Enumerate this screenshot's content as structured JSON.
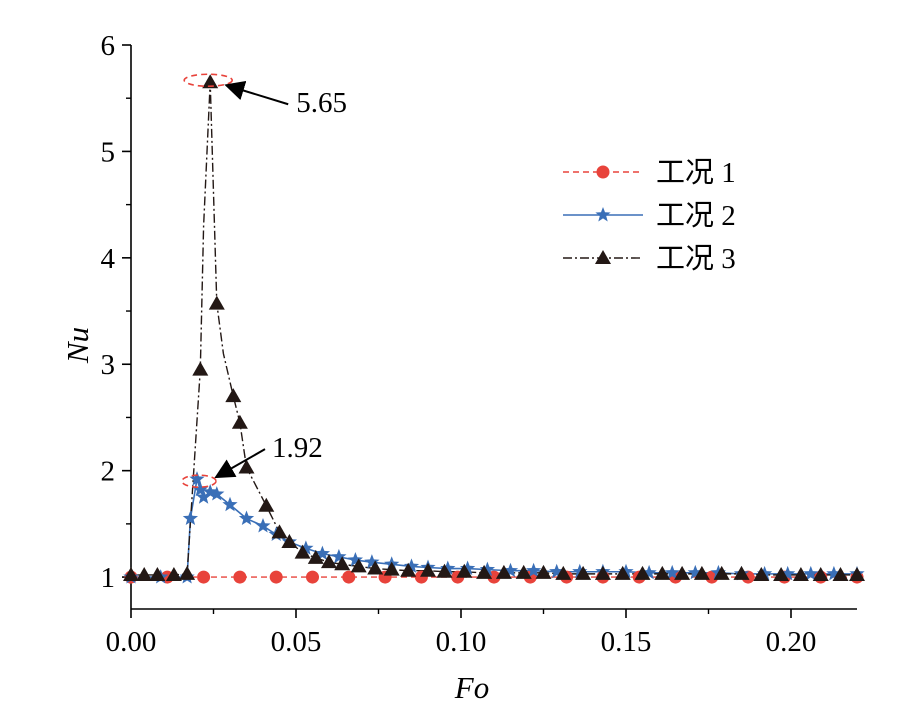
{
  "chart_data": {
    "type": "line",
    "xlabel": "Fo",
    "ylabel": "Nu",
    "xlim": [
      0,
      0.22
    ],
    "ylim": [
      0.7,
      6
    ],
    "x_ticks": [
      "0.00",
      "0.05",
      "0.10",
      "0.15",
      "0.20"
    ],
    "x_tick_values": [
      0,
      0.05,
      0.1,
      0.15,
      0.2
    ],
    "y_ticks": [
      "1",
      "2",
      "3",
      "4",
      "5",
      "6"
    ],
    "y_tick_values": [
      1,
      2,
      3,
      4,
      5,
      6
    ],
    "legend_position": "top-right",
    "grid": false,
    "series": [
      {
        "name": "工况 1",
        "color": "#e8433b",
        "line": "dashed",
        "marker": "circle",
        "x": [
          0.0,
          0.011,
          0.022,
          0.033,
          0.044,
          0.055,
          0.066,
          0.077,
          0.088,
          0.099,
          0.11,
          0.121,
          0.132,
          0.143,
          0.154,
          0.165,
          0.176,
          0.187,
          0.198,
          0.209,
          0.22
        ],
        "y": [
          1.0,
          1.0,
          1.0,
          1.0,
          1.0,
          1.0,
          1.0,
          1.0,
          1.0,
          1.0,
          1.0,
          1.0,
          1.0,
          1.0,
          1.0,
          1.0,
          1.0,
          1.0,
          1.0,
          1.0,
          1.0
        ]
      },
      {
        "name": "工况 2",
        "color": "#3a6fb7",
        "line": "solid",
        "marker": "star",
        "x": [
          0.0,
          0.009,
          0.017,
          0.018,
          0.02,
          0.021,
          0.022,
          0.024,
          0.026,
          0.03,
          0.035,
          0.04,
          0.044,
          0.048,
          0.053,
          0.058,
          0.063,
          0.068,
          0.073,
          0.079,
          0.085,
          0.09,
          0.096,
          0.102,
          0.108,
          0.115,
          0.122,
          0.129,
          0.136,
          0.143,
          0.15,
          0.157,
          0.164,
          0.171,
          0.178,
          0.185,
          0.192,
          0.199,
          0.206,
          0.213,
          0.22
        ],
        "y": [
          1.0,
          1.0,
          1.0,
          1.55,
          1.92,
          1.82,
          1.75,
          1.8,
          1.78,
          1.68,
          1.55,
          1.48,
          1.4,
          1.33,
          1.27,
          1.22,
          1.19,
          1.16,
          1.14,
          1.12,
          1.1,
          1.09,
          1.08,
          1.08,
          1.07,
          1.06,
          1.06,
          1.05,
          1.05,
          1.05,
          1.05,
          1.04,
          1.04,
          1.04,
          1.04,
          1.03,
          1.03,
          1.03,
          1.03,
          1.03,
          1.03
        ]
      },
      {
        "name": "工况 3",
        "color": "#231815",
        "line": "dashdot",
        "marker": "triangle",
        "x": [
          0.0,
          0.004,
          0.008,
          0.013,
          0.017,
          0.021,
          0.022,
          0.024,
          0.026,
          0.028,
          0.031,
          0.033,
          0.035,
          0.038,
          0.041,
          0.045,
          0.048,
          0.052,
          0.056,
          0.06,
          0.064,
          0.069,
          0.074,
          0.079,
          0.084,
          0.09,
          0.095,
          0.101,
          0.107,
          0.113,
          0.119,
          0.125,
          0.131,
          0.137,
          0.143,
          0.149,
          0.155,
          0.161,
          0.167,
          0.173,
          0.179,
          0.185,
          0.191,
          0.197,
          0.203,
          0.209,
          0.215,
          0.22
        ],
        "y": [
          1.02,
          1.02,
          1.02,
          1.02,
          1.03,
          2.95,
          4.3,
          5.65,
          3.57,
          3.1,
          2.7,
          2.45,
          2.03,
          1.85,
          1.67,
          1.42,
          1.33,
          1.23,
          1.18,
          1.14,
          1.12,
          1.1,
          1.08,
          1.07,
          1.06,
          1.06,
          1.05,
          1.05,
          1.04,
          1.04,
          1.04,
          1.04,
          1.03,
          1.03,
          1.03,
          1.03,
          1.03,
          1.03,
          1.03,
          1.03,
          1.03,
          1.03,
          1.02,
          1.02,
          1.02,
          1.02,
          1.02,
          1.02
        ],
        "marker_indices": [
          0,
          1,
          2,
          3,
          4,
          5,
          7,
          8,
          10,
          11,
          12,
          14,
          15,
          16,
          17,
          18,
          19,
          20,
          21,
          22,
          23,
          24,
          25,
          26,
          27,
          28,
          29,
          30,
          31,
          32,
          33,
          34,
          35,
          36,
          37,
          38,
          39,
          40,
          41,
          42,
          43,
          44,
          45,
          46,
          47
        ]
      }
    ],
    "annotations": [
      {
        "text": "5.65",
        "x": 0.024,
        "y": 5.65,
        "series": "工况 3"
      },
      {
        "text": "1.92",
        "x": 0.02,
        "y": 1.92,
        "series": "工况 2"
      }
    ]
  }
}
